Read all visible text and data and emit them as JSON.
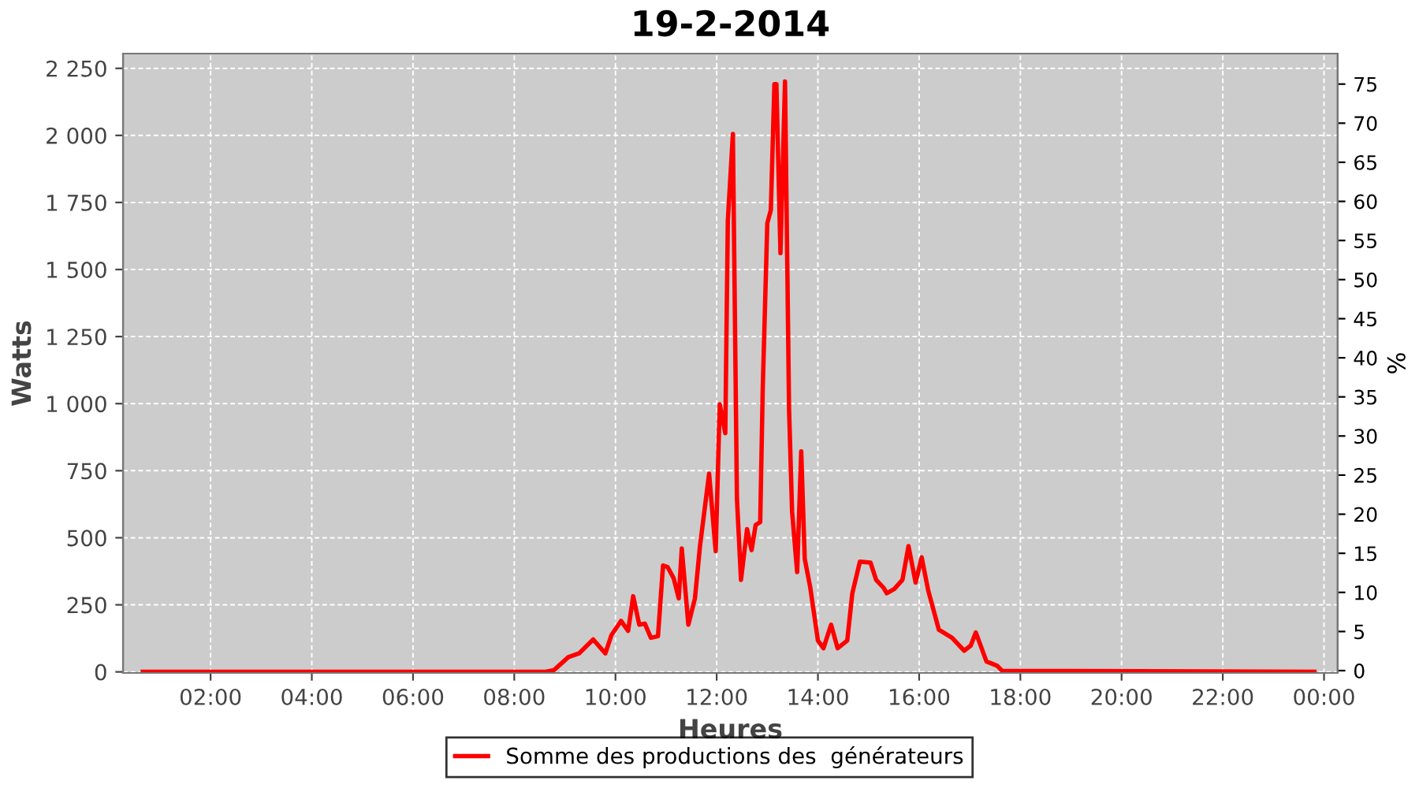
{
  "chart_data": {
    "type": "line",
    "title": "19-2-2014",
    "xlabel": "Heures",
    "ylabel": "Watts",
    "y2label": "%",
    "x": [
      0.66,
      8.6,
      8.78,
      9.07,
      9.28,
      9.56,
      9.8,
      9.92,
      10.11,
      10.25,
      10.35,
      10.47,
      10.58,
      10.7,
      10.84,
      10.94,
      11.03,
      11.15,
      11.25,
      11.31,
      11.44,
      11.57,
      11.67,
      11.85,
      11.98,
      12.06,
      12.17,
      12.22,
      12.32,
      12.4,
      12.48,
      12.6,
      12.69,
      12.77,
      12.86,
      12.91,
      13.0,
      13.07,
      13.14,
      13.18,
      13.26,
      13.35,
      13.43,
      13.49,
      13.59,
      13.67,
      13.74,
      13.85,
      14.0,
      14.11,
      14.26,
      14.39,
      14.58,
      14.68,
      14.83,
      15.04,
      15.15,
      15.3,
      15.36,
      15.51,
      15.67,
      15.79,
      15.93,
      16.05,
      16.18,
      16.39,
      16.65,
      16.89,
      17.02,
      17.12,
      17.33,
      17.54,
      17.64,
      23.81
    ],
    "series": [
      {
        "name": "Somme des productions des  générateurs",
        "color": "#ff0000",
        "values": [
          0,
          0,
          6,
          55,
          69,
          121,
          69,
          137,
          190,
          153,
          282,
          176,
          180,
          127,
          133,
          397,
          391,
          349,
          274,
          460,
          176,
          274,
          469,
          739,
          450,
          998,
          890,
          1682,
          2005,
          646,
          343,
          532,
          454,
          548,
          558,
          1056,
          1673,
          1722,
          2191,
          2191,
          1561,
          2201,
          978,
          597,
          372,
          822,
          421,
          313,
          117,
          88,
          176,
          88,
          117,
          293,
          411,
          407,
          343,
          313,
          293,
          309,
          343,
          469,
          333,
          427,
          303,
          157,
          127,
          79,
          98,
          147,
          39,
          23,
          4,
          0
        ]
      }
    ],
    "xlim": [
      0.27,
      24.27
    ],
    "xticks": [
      {
        "value": 2,
        "label": "02:00"
      },
      {
        "value": 4,
        "label": "04:00"
      },
      {
        "value": 6,
        "label": "06:00"
      },
      {
        "value": 8,
        "label": "08:00"
      },
      {
        "value": 10,
        "label": "10:00"
      },
      {
        "value": 12,
        "label": "12:00"
      },
      {
        "value": 14,
        "label": "14:00"
      },
      {
        "value": 16,
        "label": "16:00"
      },
      {
        "value": 18,
        "label": "18:00"
      },
      {
        "value": 20,
        "label": "20:00"
      },
      {
        "value": 22,
        "label": "22:00"
      },
      {
        "value": 24,
        "label": "00:00"
      }
    ],
    "ylim": [
      -4,
      2305
    ],
    "yticks": [
      0,
      250,
      500,
      750,
      {
        "value": 1000,
        "label": "1 000"
      },
      {
        "value": 1250,
        "label": "1 250"
      },
      {
        "value": 1500,
        "label": "1 500"
      },
      {
        "value": 1750,
        "label": "1 750"
      },
      {
        "value": 2000,
        "label": "2 000"
      },
      {
        "value": 2250,
        "label": "2 250"
      }
    ],
    "y2lim": [
      -0.3,
      78.9
    ],
    "y2ticks": [
      0,
      5,
      10,
      15,
      20,
      25,
      30,
      35,
      40,
      45,
      50,
      55,
      60,
      65,
      70,
      75
    ],
    "grid": true,
    "legend": "bottom",
    "marker": "none",
    "line_style": "solid"
  }
}
